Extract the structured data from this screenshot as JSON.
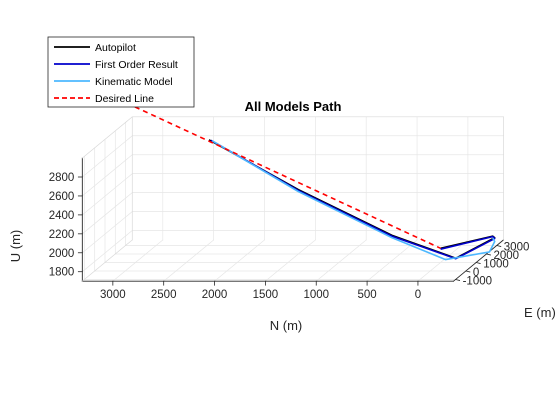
{
  "chart_data": {
    "type": "line",
    "title": "All Models Path",
    "xlabel": "N (m)",
    "ylabel": "E (m)",
    "zlabel": "U (m)",
    "n_ticks": [
      "3000",
      "2500",
      "2000",
      "1500",
      "1000",
      "500",
      "0"
    ],
    "e_ticks": [
      "-1000",
      "0",
      "1000",
      "2000",
      "3000"
    ],
    "u_ticks": [
      "1800",
      "2000",
      "2200",
      "2400",
      "2600",
      "2800"
    ],
    "grid": true,
    "legend_position": "top-left",
    "series": [
      {
        "name": "Autopilot",
        "color": "#000000",
        "style": "solid",
        "points": [
          [
            2470,
            2900,
            2825
          ],
          [
            1500,
            2000,
            2380
          ],
          [
            500,
            1200,
            1970
          ],
          [
            -200,
            500,
            1790
          ],
          [
            -350,
            2800,
            1800
          ],
          [
            -300,
            3100,
            1790
          ],
          [
            0,
            1000,
            1850
          ]
        ]
      },
      {
        "name": "First Order Result",
        "color": "#0000cc",
        "style": "solid",
        "points": [
          [
            2450,
            2900,
            2820
          ],
          [
            1500,
            2000,
            2370
          ],
          [
            500,
            1200,
            1960
          ],
          [
            -200,
            500,
            1785
          ],
          [
            -350,
            2800,
            1790
          ],
          [
            -300,
            3100,
            1785
          ],
          [
            0,
            1000,
            1840
          ]
        ]
      },
      {
        "name": "Kinematic Model",
        "color": "#4db8ff",
        "style": "solid",
        "points": [
          [
            2440,
            2900,
            2815
          ],
          [
            1500,
            2000,
            2360
          ],
          [
            500,
            1200,
            1945
          ],
          [
            -100,
            500,
            1775
          ],
          [
            -400,
            1800,
            1740
          ],
          [
            -350,
            2800,
            1760
          ],
          [
            -300,
            3100,
            1770
          ]
        ]
      },
      {
        "name": "Desired Line",
        "color": "#ff0000",
        "style": "dashed",
        "points": [
          [
            3350,
            3600,
            3150
          ],
          [
            0,
            1000,
            1850
          ]
        ]
      }
    ]
  }
}
